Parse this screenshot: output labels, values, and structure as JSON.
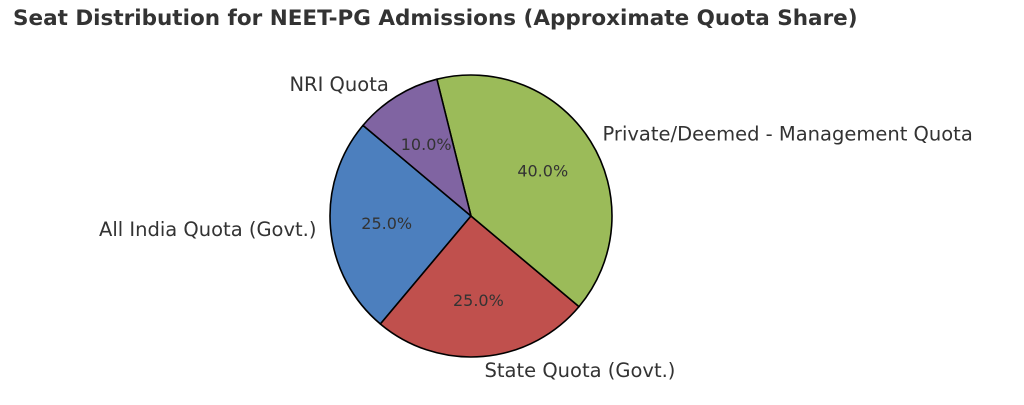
{
  "chart_data": {
    "type": "pie",
    "title": "Seat Distribution for NEET-PG Admissions (Approximate Quota Share)",
    "start_angle_deg": 140,
    "direction": "counterclockwise",
    "slices": [
      {
        "label": "All India Quota (Govt.)",
        "value": 25.0,
        "pct_label": "25.0%",
        "color": "#4c7fbe"
      },
      {
        "label": "State Quota (Govt.)",
        "value": 25.0,
        "pct_label": "25.0%",
        "color": "#c0504d"
      },
      {
        "label": "Private/Deemed - Management Quota",
        "value": 40.0,
        "pct_label": "40.0%",
        "color": "#9bbb59"
      },
      {
        "label": "NRI Quota",
        "value": 10.0,
        "pct_label": "10.0%",
        "color": "#8064a2"
      }
    ],
    "edge_color": "#000000"
  }
}
